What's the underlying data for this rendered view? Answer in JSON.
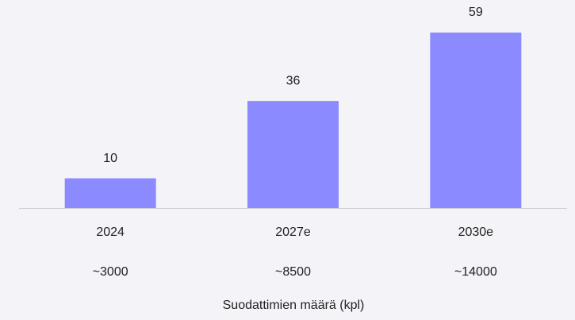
{
  "chart_data": {
    "type": "bar",
    "categories": [
      "2024",
      "2027e",
      "2030e"
    ],
    "sublabels": [
      "~3000",
      "~8500",
      "~14000"
    ],
    "values": [
      10,
      36,
      59
    ],
    "color": "#8b8bff",
    "x_label": "Suodattimien määrä (kpl)"
  }
}
